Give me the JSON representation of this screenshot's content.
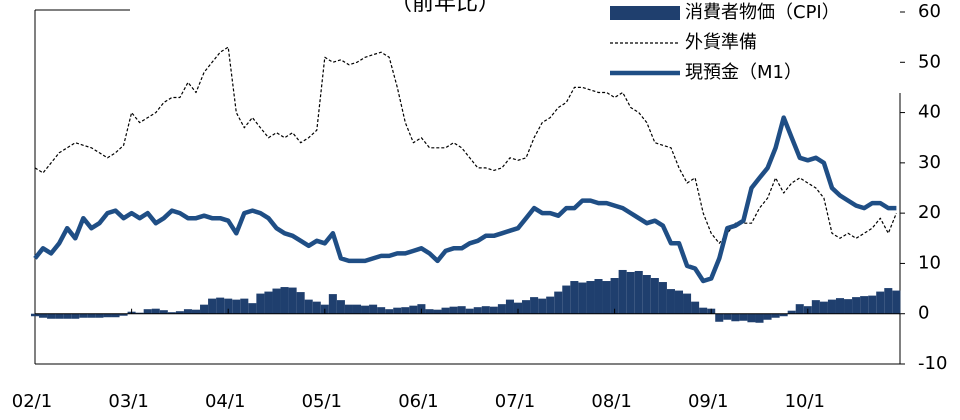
{
  "chart_data": {
    "type": "combo",
    "title": "（前年比）",
    "categories": [
      "02/1",
      null,
      null,
      null,
      null,
      null,
      null,
      null,
      null,
      null,
      null,
      null,
      "03/1",
      null,
      null,
      null,
      null,
      null,
      null,
      null,
      null,
      null,
      null,
      null,
      "04/1",
      null,
      null,
      null,
      null,
      null,
      null,
      null,
      null,
      null,
      null,
      null,
      "05/1",
      null,
      null,
      null,
      null,
      null,
      null,
      null,
      null,
      null,
      null,
      null,
      "06/1",
      null,
      null,
      null,
      null,
      null,
      null,
      null,
      null,
      null,
      null,
      null,
      "07/1",
      null,
      null,
      null,
      null,
      null,
      null,
      null,
      null,
      null,
      null,
      null,
      "08/1",
      null,
      null,
      null,
      null,
      null,
      null,
      null,
      null,
      null,
      null,
      null,
      "09/1",
      null,
      null,
      null,
      null,
      null,
      null,
      null,
      null,
      null,
      null,
      null,
      "10/1",
      null,
      null,
      null,
      null,
      null,
      null,
      null,
      null,
      null,
      null,
      null
    ],
    "series": [
      {
        "name": "消費者物価（CPI）",
        "kind": "bar",
        "color": "#1f3f6e",
        "values": [
          -0.5,
          -0.8,
          -1,
          -1,
          -1,
          -1,
          -0.8,
          -0.8,
          -0.8,
          -0.7,
          -0.7,
          -0.4,
          0.4,
          0.2,
          0.9,
          1,
          0.7,
          0.3,
          0.5,
          0.9,
          0.8,
          1.8,
          3,
          3.2,
          3,
          2.8,
          3,
          2.1,
          4,
          4.4,
          5,
          5.3,
          5.2,
          4.3,
          2.8,
          2.4,
          1.8,
          3.9,
          2.7,
          1.8,
          1.8,
          1.6,
          1.8,
          1.3,
          0.9,
          1.2,
          1.3,
          1.6,
          1.9,
          0.9,
          0.8,
          1.2,
          1.4,
          1.5,
          1,
          1.3,
          1.5,
          1.4,
          1.9,
          2.8,
          2.2,
          2.7,
          3.3,
          3,
          3.4,
          4.4,
          5.6,
          6.5,
          6.2,
          6.5,
          6.9,
          6.5,
          7.1,
          8.7,
          8.3,
          8.5,
          7.7,
          7.1,
          6.3,
          4.9,
          4.6,
          4,
          2.4,
          1.2,
          1,
          -1.6,
          -1.2,
          -1.5,
          -1.4,
          -1.7,
          -1.8,
          -1.2,
          -0.8,
          -0.5,
          0.6,
          1.9,
          1.5,
          2.7,
          2.4,
          2.8,
          3.1,
          2.9,
          3.3,
          3.5,
          3.6,
          4.4,
          5.1,
          4.6
        ]
      },
      {
        "name": "外貨準備",
        "kind": "dashed",
        "color": "#000000",
        "values": [
          29,
          28,
          30,
          32,
          33,
          34,
          33.5,
          33,
          32,
          31,
          32,
          33.5,
          40,
          38,
          39,
          40,
          42,
          43,
          43,
          46,
          44,
          48,
          50,
          52,
          53,
          40,
          37,
          39,
          37,
          35,
          36,
          35,
          36,
          34,
          35,
          36.5,
          51,
          50,
          50.5,
          49.5,
          50,
          51,
          51.5,
          52,
          51,
          45,
          38,
          34,
          35,
          33,
          33,
          33,
          34,
          33,
          31,
          29,
          29,
          28.5,
          29,
          31,
          30.5,
          31,
          35,
          38,
          39,
          41,
          42,
          45,
          45,
          44.5,
          44,
          44,
          43,
          44,
          41,
          40,
          38,
          34,
          33.5,
          33,
          29,
          26,
          27,
          20,
          16,
          14,
          16,
          18,
          18,
          18,
          21,
          23,
          27,
          24,
          26,
          27,
          26,
          25,
          23,
          16,
          15,
          16,
          15,
          16,
          17,
          19,
          16,
          20
        ]
      },
      {
        "name": "現預金（M1）",
        "kind": "line",
        "color": "#1f4e85",
        "values": [
          11,
          13,
          12,
          14,
          17,
          15,
          19,
          17,
          18,
          20,
          20.5,
          19,
          20,
          19,
          20,
          18,
          19,
          20.5,
          20,
          19,
          19,
          19.5,
          19,
          19,
          18.5,
          16,
          20,
          20.5,
          20,
          19,
          17,
          16,
          15.5,
          14.5,
          13.5,
          14.5,
          14,
          16,
          11,
          10.5,
          10.5,
          10.5,
          11,
          11.5,
          11.5,
          12,
          12,
          12.5,
          13,
          12,
          10.5,
          12.5,
          13,
          13,
          14,
          14.5,
          15.5,
          15.5,
          16,
          16.5,
          17,
          19,
          21,
          20,
          20,
          19.5,
          21,
          21,
          22.5,
          22.5,
          22,
          22,
          21.5,
          21,
          20,
          19,
          18,
          18.5,
          17.5,
          14,
          14,
          9.5,
          9,
          6.5,
          7,
          11,
          17,
          17.5,
          18.5,
          25,
          27,
          29,
          33,
          39,
          35,
          31,
          30.5,
          31,
          30,
          25,
          23.5,
          22.5,
          21.5,
          21,
          22,
          22,
          21,
          21
        ]
      }
    ],
    "ylim": [
      -10,
      60
    ],
    "yticks": [
      -10,
      0,
      10,
      20,
      30,
      40,
      50,
      60
    ]
  }
}
